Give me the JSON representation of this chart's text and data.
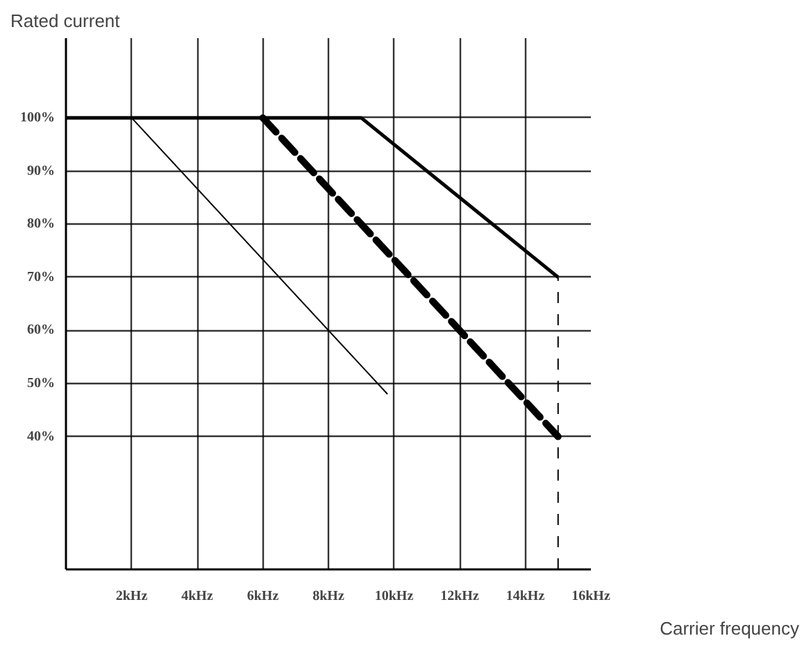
{
  "chart_data": {
    "type": "line",
    "xlabel": "Carrier frequency",
    "ylabel": "Rated current",
    "xlim": [
      0,
      16
    ],
    "ylim": [
      15,
      115
    ],
    "xticks": [
      {
        "value": 2,
        "label": "2kHz"
      },
      {
        "value": 4,
        "label": "4kHz"
      },
      {
        "value": 6,
        "label": "6kHz"
      },
      {
        "value": 8,
        "label": "8kHz"
      },
      {
        "value": 10,
        "label": "10kHz"
      },
      {
        "value": 12,
        "label": "12kHz"
      },
      {
        "value": 14,
        "label": "14kHz"
      },
      {
        "value": 16,
        "label": "16kHz"
      }
    ],
    "yticks": [
      {
        "value": 40,
        "label": "40%"
      },
      {
        "value": 50,
        "label": "50%"
      },
      {
        "value": 60,
        "label": "60%"
      },
      {
        "value": 70,
        "label": "70%"
      },
      {
        "value": 80,
        "label": "80%"
      },
      {
        "value": 90,
        "label": "90%"
      },
      {
        "value": 100,
        "label": "100%"
      }
    ],
    "grid": true,
    "marker": "none",
    "series": [
      {
        "color": "#000000",
        "x": [
          0,
          9,
          15
        ],
        "values": [
          100,
          100,
          70
        ],
        "line_style": "solid"
      },
      {
        "color": "#000000",
        "x": [
          6,
          15
        ],
        "values": [
          100,
          40
        ],
        "line_style": "dashed"
      },
      {
        "color": "#000000",
        "x": [
          2,
          9.8
        ],
        "values": [
          100,
          48
        ],
        "line_style": "solid"
      },
      {
        "color": "#000000",
        "x": [
          15,
          15
        ],
        "values": [
          15,
          70
        ],
        "line_style": "dashed"
      }
    ]
  }
}
